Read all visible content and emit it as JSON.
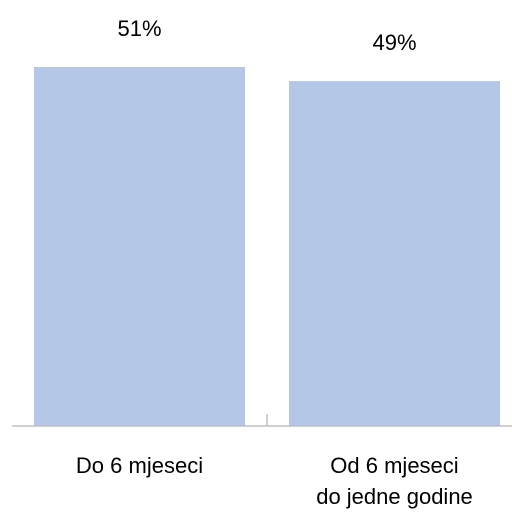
{
  "chart_data": {
    "type": "bar",
    "categories": [
      [
        "Do 6 mjeseci"
      ],
      [
        "Od 6 mjeseci",
        "do jedne godine"
      ]
    ],
    "values": [
      51,
      49
    ],
    "data_labels": [
      "51%",
      "49%"
    ],
    "bar_color": "#b4c7e7",
    "axis_color": "#bfbfbf",
    "ylim": [
      0,
      51
    ],
    "grid": false,
    "legend": "none"
  }
}
